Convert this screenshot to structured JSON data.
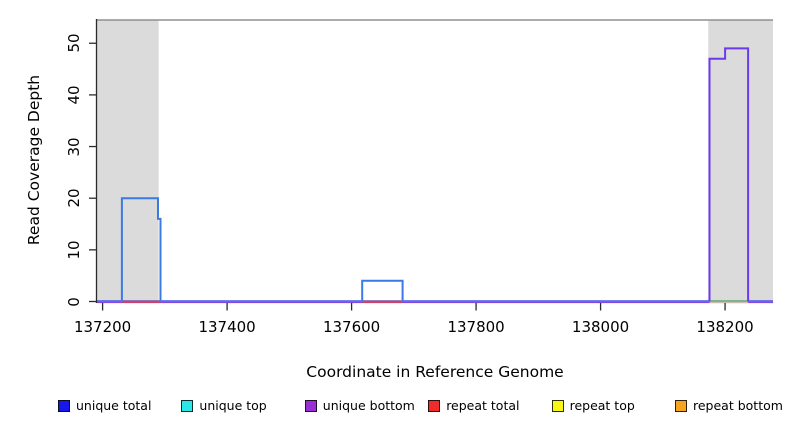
{
  "chart_data": {
    "type": "line",
    "subtype": "step-coverage-plot",
    "title": "",
    "xlabel": "Coordinate in Reference Genome",
    "ylabel": "Read Coverage Depth",
    "xlim": [
      137191,
      138277
    ],
    "ylim": [
      0,
      54.5
    ],
    "x_ticks": [
      137200,
      137400,
      137600,
      137800,
      138000,
      138200
    ],
    "x_tick_labels": [
      "137200",
      "137400",
      "137600",
      "137800",
      "138000",
      "138200"
    ],
    "y_ticks": [
      0,
      10,
      20,
      30,
      40,
      50
    ],
    "y_tick_labels": [
      "0",
      "10",
      "20",
      "30",
      "40",
      "50"
    ],
    "grid": false,
    "shaded_regions_x": [
      [
        137191,
        137290
      ],
      [
        138173,
        138277
      ]
    ],
    "shaded_region_color": "#DBDBDB",
    "ceiling_line_value": 54.5,
    "ceiling_line_color": "#909090",
    "series": [
      {
        "name": "unique total",
        "color": "#3B79E4",
        "segments": [
          {
            "x0": 137231,
            "x1": 137289,
            "y": 20
          },
          {
            "x0": 137289,
            "x1": 137293,
            "y": 16
          },
          {
            "x0": 137617,
            "x1": 137682,
            "y": 4
          }
        ]
      },
      {
        "name": "unique bottom",
        "color": "#6B3AEE",
        "segments": [
          {
            "x0": 138175,
            "x1": 138200,
            "y": 47
          },
          {
            "x0": 138200,
            "x1": 138237,
            "y": 49
          }
        ]
      }
    ],
    "baseline_overlays": {
      "note": "all six series sit at depth 0 elsewhere; overlapping 0-lines visible as colored baseline",
      "blue_purple_baseline_x": [
        137191,
        138277
      ],
      "blue_color": "#4A55E2",
      "purple_color": "#7C4BE4",
      "red_zero_segments_x": [
        [
          137231,
          137293
        ],
        [
          137617,
          137682
        ]
      ],
      "red_color": "#E34040",
      "green_zero_segment_x": [
        138175,
        138237
      ],
      "green_color": "#76C076",
      "pale_yellow_color": "#E8E2A0"
    },
    "legend_position": "bottom",
    "legend": [
      {
        "label": "unique total",
        "swatch_color": "#1717EA"
      },
      {
        "label": "unique top",
        "swatch_color": "#2BE8E8"
      },
      {
        "label": "unique bottom",
        "swatch_color": "#9B2FD6"
      },
      {
        "label": "repeat total",
        "swatch_color": "#EE2C2C"
      },
      {
        "label": "repeat top",
        "swatch_color": "#F7F716"
      },
      {
        "label": "repeat bottom",
        "swatch_color": "#F5A41F"
      }
    ]
  }
}
